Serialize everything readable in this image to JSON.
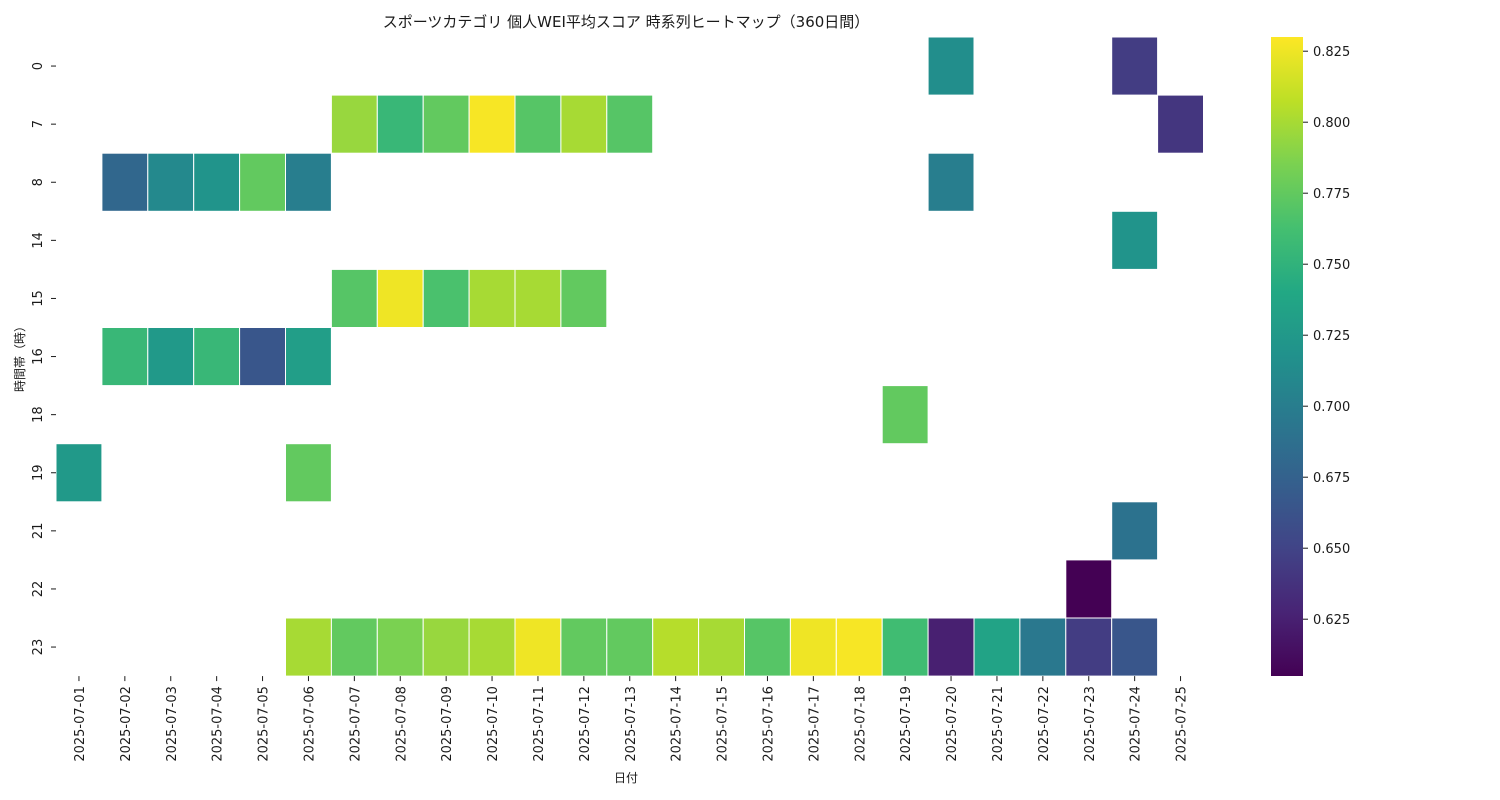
{
  "chart_data": {
    "type": "heatmap",
    "title": "スポーツカテゴリ 個人WEI平均スコア 時系列ヒートマップ（360日間）",
    "xlabel": "日付",
    "ylabel": "時間帯（時）",
    "x": [
      "2025-07-01",
      "2025-07-02",
      "2025-07-03",
      "2025-07-04",
      "2025-07-05",
      "2025-07-06",
      "2025-07-07",
      "2025-07-08",
      "2025-07-09",
      "2025-07-10",
      "2025-07-11",
      "2025-07-12",
      "2025-07-13",
      "2025-07-14",
      "2025-07-15",
      "2025-07-16",
      "2025-07-17",
      "2025-07-18",
      "2025-07-19",
      "2025-07-20",
      "2025-07-21",
      "2025-07-22",
      "2025-07-23",
      "2025-07-24",
      "2025-07-25"
    ],
    "y": [
      "0",
      "7",
      "8",
      "14",
      "15",
      "16",
      "18",
      "19",
      "21",
      "22",
      "23"
    ],
    "values": [
      [
        null,
        null,
        null,
        null,
        null,
        null,
        null,
        null,
        null,
        null,
        null,
        null,
        null,
        null,
        null,
        null,
        null,
        null,
        null,
        0.715,
        null,
        null,
        null,
        0.645,
        null
      ],
      [
        null,
        null,
        null,
        null,
        null,
        null,
        0.795,
        0.755,
        0.775,
        0.828,
        0.77,
        0.8,
        0.77,
        null,
        null,
        null,
        null,
        null,
        null,
        null,
        null,
        null,
        null,
        null,
        0.64
      ],
      [
        null,
        0.68,
        0.71,
        0.72,
        0.775,
        0.7,
        null,
        null,
        null,
        null,
        null,
        null,
        null,
        null,
        null,
        null,
        null,
        null,
        null,
        0.7,
        null,
        null,
        null,
        null,
        null
      ],
      [
        null,
        null,
        null,
        null,
        null,
        null,
        null,
        null,
        null,
        null,
        null,
        null,
        null,
        null,
        null,
        null,
        null,
        null,
        null,
        null,
        null,
        null,
        null,
        0.72,
        null
      ],
      [
        null,
        null,
        null,
        null,
        null,
        null,
        0.77,
        0.825,
        0.765,
        0.8,
        0.8,
        0.775,
        null,
        null,
        null,
        null,
        null,
        null,
        null,
        null,
        null,
        null,
        null,
        null,
        null
      ],
      [
        null,
        0.755,
        0.725,
        0.755,
        0.665,
        0.73,
        null,
        null,
        null,
        null,
        null,
        null,
        null,
        null,
        null,
        null,
        null,
        null,
        null,
        null,
        null,
        null,
        null,
        null,
        null
      ],
      [
        null,
        null,
        null,
        null,
        null,
        null,
        null,
        null,
        null,
        null,
        null,
        null,
        null,
        null,
        null,
        null,
        null,
        null,
        0.775,
        null,
        null,
        null,
        null,
        null,
        null
      ],
      [
        0.725,
        null,
        null,
        null,
        null,
        0.775,
        null,
        null,
        null,
        null,
        null,
        null,
        null,
        null,
        null,
        null,
        null,
        null,
        null,
        null,
        null,
        null,
        null,
        null,
        null
      ],
      [
        null,
        null,
        null,
        null,
        null,
        null,
        null,
        null,
        null,
        null,
        null,
        null,
        null,
        null,
        null,
        null,
        null,
        null,
        null,
        null,
        null,
        null,
        null,
        0.69,
        null
      ],
      [
        null,
        null,
        null,
        null,
        null,
        null,
        null,
        null,
        null,
        null,
        null,
        null,
        null,
        null,
        null,
        null,
        null,
        null,
        null,
        null,
        null,
        null,
        0.605,
        null,
        null
      ],
      [
        null,
        null,
        null,
        null,
        null,
        0.8,
        0.775,
        0.785,
        0.795,
        0.8,
        0.825,
        0.775,
        0.775,
        0.805,
        0.8,
        0.77,
        0.825,
        0.828,
        0.76,
        0.625,
        0.735,
        0.695,
        0.645,
        0.665,
        null
      ]
    ],
    "color_range": [
      0.605,
      0.83
    ],
    "colormap": "viridis",
    "colorbar_ticks": [
      "0.625",
      "0.650",
      "0.675",
      "0.700",
      "0.725",
      "0.750",
      "0.775",
      "0.800",
      "0.825"
    ],
    "colorbar_tick_values": [
      0.625,
      0.65,
      0.675,
      0.7,
      0.725,
      0.75,
      0.775,
      0.8,
      0.825
    ],
    "grid": false,
    "legend": "colorbar-right"
  }
}
